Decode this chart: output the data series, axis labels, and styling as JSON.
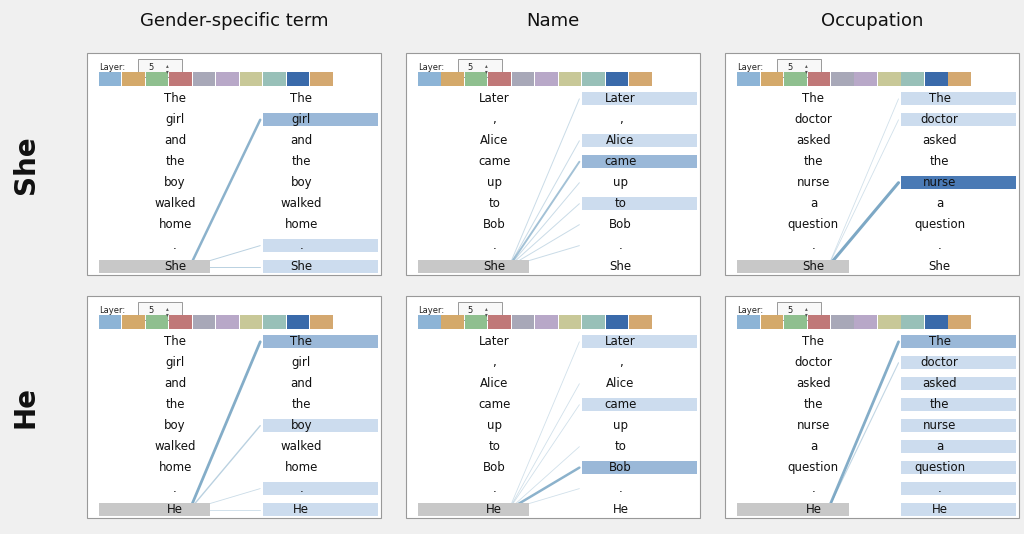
{
  "title_fontsize": 13,
  "row_label_fontsize": 20,
  "word_fontsize": 8.5,
  "background": "#f0f0f0",
  "token_highlight_blue_dark": "#4a7ab5",
  "token_highlight_blue_med": "#9ab8d8",
  "token_highlight_blue_light": "#ccdcee",
  "token_highlight_gray": "#c8c8c8",
  "line_color": "#6699bb",
  "col_titles": [
    "Gender-specific term",
    "Name",
    "Occupation"
  ],
  "row_labels": [
    "She",
    "He"
  ],
  "col_words_she": [
    [
      "The",
      "girl",
      "and",
      "the",
      "boy",
      "walked",
      "home",
      ".",
      "She"
    ],
    [
      "Later",
      ",",
      "Alice",
      "came",
      "up",
      "to",
      "Bob",
      ".",
      "She"
    ],
    [
      "The",
      "doctor",
      "asked",
      "the",
      "nurse",
      "a",
      "question",
      ".",
      "She"
    ]
  ],
  "col_words_he": [
    [
      "The",
      "girl",
      "and",
      "the",
      "boy",
      "walked",
      "home",
      ".",
      "He"
    ],
    [
      "Later",
      ",",
      "Alice",
      "came",
      "up",
      "to",
      "Bob",
      ".",
      "He"
    ],
    [
      "The",
      "doctor",
      "asked",
      "the",
      "nurse",
      "a",
      "question",
      ".",
      "He"
    ]
  ],
  "head_colors_row0": [
    [
      "#8db4d6",
      "#d4a96a",
      "#8fbf8f",
      "#c07878",
      "#a8a8b8",
      "#b8a8c8",
      "#c8c898",
      "#98c0b8",
      "#3a6aaa",
      "#d4a870"
    ],
    [
      "#8db4d6",
      "#d4a96a",
      "#8fbf8f",
      "#c07878",
      "#a8a8b8",
      "#b8a8c8",
      "#c8c898",
      "#98c0b8",
      "#3a6aaa",
      "#d4a870"
    ],
    [
      "#8db4d6",
      "#d4a96a",
      "#8fbf8f",
      "#c07878",
      "#a8a8b8",
      "#b8a8c8",
      "#c8c898",
      "#98c0b8",
      "#3a6aaa",
      "#d4a870"
    ]
  ],
  "head_colors_row1": [
    [
      "#8db4d6",
      "#d4a96a",
      "#8fbf8f",
      "#c07878",
      "#a8a8b8",
      "#b8a8c8",
      "#c8c898",
      "#98c0b8",
      "#3a6aaa",
      "#d4a870"
    ],
    [
      "#8db4d6",
      "#d4a96a",
      "#8fbf8f",
      "#c07878",
      "#a8a8b8",
      "#b8a8c8",
      "#c8c898",
      "#98c0b8",
      "#3a6aaa",
      "#d4a870"
    ],
    [
      "#8db4d6",
      "#d4a96a",
      "#8fbf8f",
      "#c07878",
      "#a8a8b8",
      "#b8a8c8",
      "#c8c898",
      "#98c0b8",
      "#3a6aaa",
      "#d4a870"
    ]
  ],
  "panels": [
    {
      "row": 0,
      "col": 0,
      "source_idx": 8,
      "right_highlights": [
        {
          "idx": 1,
          "color": "#9ab8d8"
        },
        {
          "idx": 7,
          "color": "#ccdcee"
        },
        {
          "idx": 8,
          "color": "#ccdcee"
        }
      ],
      "lines": [
        {
          "to": 1,
          "weight": 1.8,
          "alpha": 0.75
        },
        {
          "to": 7,
          "weight": 0.7,
          "alpha": 0.45
        },
        {
          "to": 8,
          "weight": 0.7,
          "alpha": 0.45
        }
      ]
    },
    {
      "row": 0,
      "col": 1,
      "source_idx": 8,
      "right_highlights": [
        {
          "idx": 0,
          "color": "#ccdcee"
        },
        {
          "idx": 2,
          "color": "#ccdcee"
        },
        {
          "idx": 3,
          "color": "#9ab8d8"
        },
        {
          "idx": 5,
          "color": "#ccdcee"
        }
      ],
      "lines": [
        {
          "to": 0,
          "weight": 0.7,
          "alpha": 0.35
        },
        {
          "to": 2,
          "weight": 0.7,
          "alpha": 0.35
        },
        {
          "to": 3,
          "weight": 1.4,
          "alpha": 0.6
        },
        {
          "to": 4,
          "weight": 0.7,
          "alpha": 0.35
        },
        {
          "to": 5,
          "weight": 0.7,
          "alpha": 0.35
        },
        {
          "to": 6,
          "weight": 0.7,
          "alpha": 0.35
        },
        {
          "to": 7,
          "weight": 0.7,
          "alpha": 0.35
        }
      ]
    },
    {
      "row": 0,
      "col": 2,
      "source_idx": 8,
      "right_highlights": [
        {
          "idx": 0,
          "color": "#ccdcee"
        },
        {
          "idx": 1,
          "color": "#ccdcee"
        },
        {
          "idx": 4,
          "color": "#4a7ab5"
        }
      ],
      "lines": [
        {
          "to": 4,
          "weight": 2.2,
          "alpha": 0.85
        },
        {
          "to": 0,
          "weight": 0.6,
          "alpha": 0.3
        },
        {
          "to": 1,
          "weight": 0.6,
          "alpha": 0.3
        }
      ]
    },
    {
      "row": 1,
      "col": 0,
      "source_idx": 8,
      "right_highlights": [
        {
          "idx": 0,
          "color": "#9ab8d8"
        },
        {
          "idx": 4,
          "color": "#ccdcee"
        },
        {
          "idx": 7,
          "color": "#ccdcee"
        },
        {
          "idx": 8,
          "color": "#ccdcee"
        }
      ],
      "lines": [
        {
          "to": 0,
          "weight": 2.0,
          "alpha": 0.8
        },
        {
          "to": 4,
          "weight": 1.0,
          "alpha": 0.45
        },
        {
          "to": 7,
          "weight": 0.6,
          "alpha": 0.35
        },
        {
          "to": 8,
          "weight": 0.6,
          "alpha": 0.35
        }
      ]
    },
    {
      "row": 1,
      "col": 1,
      "source_idx": 8,
      "right_highlights": [
        {
          "idx": 6,
          "color": "#9ab8d8"
        },
        {
          "idx": 0,
          "color": "#ccdcee"
        },
        {
          "idx": 3,
          "color": "#ccdcee"
        }
      ],
      "lines": [
        {
          "to": 0,
          "weight": 0.6,
          "alpha": 0.3
        },
        {
          "to": 2,
          "weight": 0.6,
          "alpha": 0.3
        },
        {
          "to": 3,
          "weight": 0.6,
          "alpha": 0.3
        },
        {
          "to": 5,
          "weight": 0.6,
          "alpha": 0.3
        },
        {
          "to": 6,
          "weight": 1.8,
          "alpha": 0.75
        },
        {
          "to": 7,
          "weight": 0.6,
          "alpha": 0.3
        }
      ]
    },
    {
      "row": 1,
      "col": 2,
      "source_idx": 8,
      "right_highlights": [
        {
          "idx": 0,
          "color": "#9ab8d8"
        },
        {
          "idx": 1,
          "color": "#ccdcee"
        },
        {
          "idx": 2,
          "color": "#ccdcee"
        },
        {
          "idx": 3,
          "color": "#ccdcee"
        },
        {
          "idx": 4,
          "color": "#ccdcee"
        },
        {
          "idx": 5,
          "color": "#ccdcee"
        },
        {
          "idx": 6,
          "color": "#ccdcee"
        },
        {
          "idx": 7,
          "color": "#ccdcee"
        },
        {
          "idx": 8,
          "color": "#ccdcee"
        }
      ],
      "lines": [
        {
          "to": 0,
          "weight": 2.0,
          "alpha": 0.8
        },
        {
          "to": 1,
          "weight": 0.8,
          "alpha": 0.4
        }
      ]
    }
  ]
}
